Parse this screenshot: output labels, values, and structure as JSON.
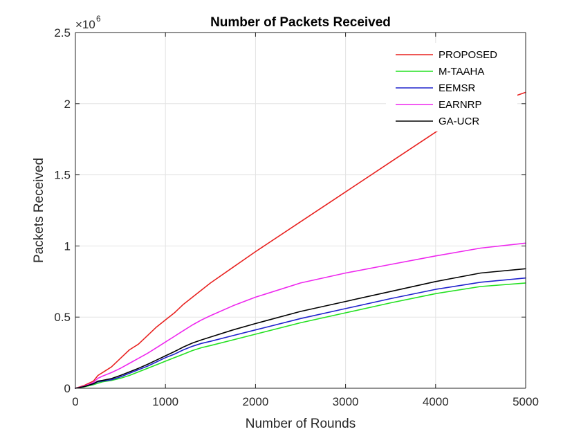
{
  "chart_data": {
    "type": "line",
    "title": "Number of Packets Received",
    "xlabel": "Number of Rounds",
    "ylabel": "Packets Received",
    "y_exponent_label": "×10",
    "y_exponent_power": "6",
    "xlim": [
      0,
      5000
    ],
    "ylim": [
      0,
      2.5
    ],
    "xticks": [
      0,
      1000,
      2000,
      3000,
      4000,
      5000
    ],
    "xtick_labels": [
      "0",
      "1000",
      "2000",
      "3000",
      "4000",
      "5000"
    ],
    "yticks": [
      0,
      0.5,
      1,
      1.5,
      2,
      2.5
    ],
    "ytick_labels": [
      "0",
      "0.5",
      "1",
      "1.5",
      "2",
      "2.5"
    ],
    "grid": true,
    "legend_position": "top-right",
    "x": [
      0,
      100,
      200,
      250,
      300,
      400,
      500,
      600,
      700,
      800,
      900,
      1000,
      1100,
      1200,
      1300,
      1400,
      1500,
      1750,
      2000,
      2500,
      3000,
      3500,
      4000,
      4500,
      5000
    ],
    "series": [
      {
        "name": "PROPOSED",
        "color": "#e8211f",
        "values": [
          0,
          0.02,
          0.05,
          0.09,
          0.11,
          0.15,
          0.21,
          0.27,
          0.31,
          0.37,
          0.43,
          0.48,
          0.53,
          0.59,
          0.64,
          0.69,
          0.74,
          0.85,
          0.96,
          1.17,
          1.38,
          1.59,
          1.8,
          1.97,
          2.08
        ]
      },
      {
        "name": "M-TAAHA",
        "color": "#22e020",
        "values": [
          0,
          0.01,
          0.025,
          0.035,
          0.045,
          0.055,
          0.07,
          0.09,
          0.115,
          0.14,
          0.165,
          0.19,
          0.215,
          0.24,
          0.265,
          0.285,
          0.3,
          0.34,
          0.38,
          0.46,
          0.53,
          0.6,
          0.665,
          0.715,
          0.74
        ]
      },
      {
        "name": "EEMSR",
        "color": "#1f22cc",
        "values": [
          0,
          0.012,
          0.03,
          0.045,
          0.05,
          0.06,
          0.08,
          0.105,
          0.13,
          0.155,
          0.185,
          0.215,
          0.24,
          0.27,
          0.295,
          0.315,
          0.33,
          0.37,
          0.41,
          0.49,
          0.56,
          0.63,
          0.695,
          0.745,
          0.775
        ]
      },
      {
        "name": "EARNRP",
        "color": "#ee27ee",
        "values": [
          0,
          0.015,
          0.04,
          0.07,
          0.085,
          0.11,
          0.14,
          0.175,
          0.21,
          0.245,
          0.285,
          0.325,
          0.365,
          0.405,
          0.445,
          0.48,
          0.51,
          0.58,
          0.64,
          0.74,
          0.81,
          0.87,
          0.93,
          0.985,
          1.02
        ]
      },
      {
        "name": "GA-UCR",
        "color": "#000000",
        "values": [
          0,
          0.012,
          0.032,
          0.05,
          0.055,
          0.068,
          0.09,
          0.115,
          0.14,
          0.168,
          0.198,
          0.228,
          0.258,
          0.29,
          0.318,
          0.34,
          0.36,
          0.41,
          0.455,
          0.54,
          0.61,
          0.68,
          0.75,
          0.81,
          0.84
        ]
      }
    ]
  }
}
